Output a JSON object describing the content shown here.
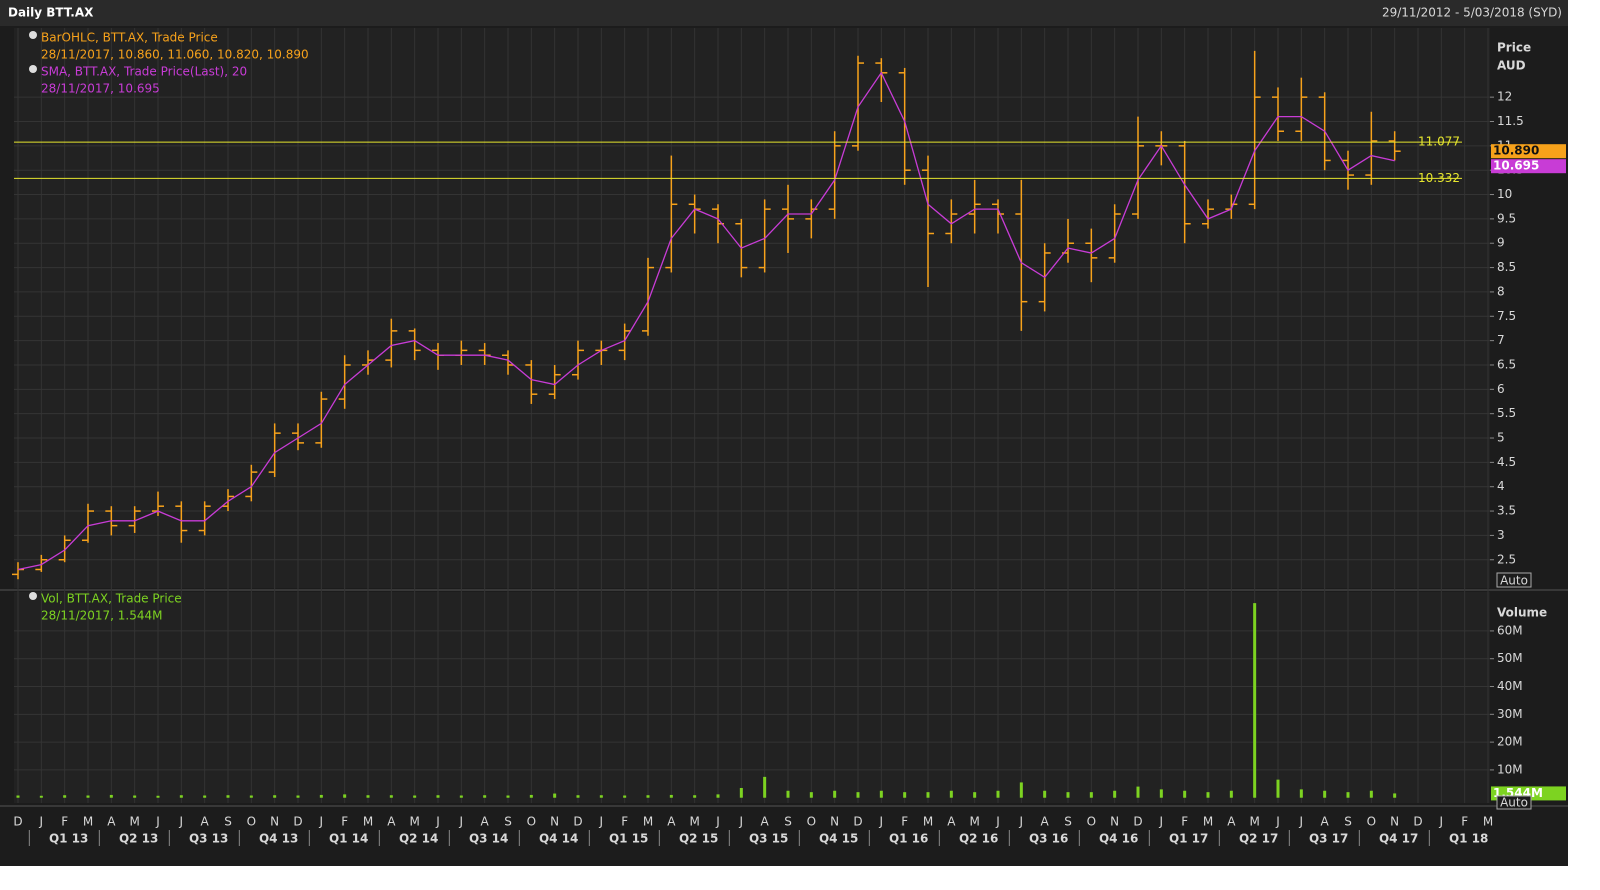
{
  "header": {
    "title": "Daily BTT.AX",
    "range": "29/11/2012 - 5/03/2018 (SYD)"
  },
  "chart_data": [
    {
      "type": "ohlc",
      "ylabel": "Price",
      "yunit": "AUD",
      "button": "Auto",
      "ylim": [
        1.92,
        13.42
      ],
      "yticks": [
        2.5,
        3,
        3.5,
        4,
        4.5,
        5,
        5.5,
        6,
        6.5,
        7,
        7.5,
        8,
        8.5,
        9,
        9.5,
        10,
        10.5,
        11,
        11.5,
        12
      ],
      "grid": true,
      "series": [
        {
          "name": "BarOHLC, BTT.AX, Trade Price",
          "color": "#f7a21b",
          "open": [
            2.2,
            2.3,
            2.5,
            2.9,
            3.5,
            3.2,
            3.5,
            3.6,
            3.1,
            3.6,
            3.8,
            4.3,
            5.1,
            4.9,
            5.8,
            6.5,
            6.6,
            7.2,
            6.8,
            6.7,
            6.8,
            6.7,
            6.5,
            5.9,
            6.3,
            6.8,
            6.8,
            7.2,
            8.5,
            9.8,
            9.7,
            9.4,
            8.5,
            9.7,
            9.5,
            9.7,
            11.0,
            12.7,
            12.5,
            10.5,
            9.2,
            9.6,
            9.8,
            9.6,
            7.8,
            8.8,
            9.0,
            8.7,
            9.6,
            11.0,
            11.0,
            9.4,
            9.7,
            9.8,
            12.0,
            11.3,
            12.0,
            10.7,
            10.4,
            11.1,
            null,
            null,
            null,
            null
          ],
          "high": [
            2.45,
            2.6,
            3.0,
            3.65,
            3.6,
            3.6,
            3.9,
            3.7,
            3.7,
            3.95,
            4.45,
            5.3,
            5.3,
            5.95,
            6.7,
            6.8,
            7.45,
            7.25,
            6.95,
            7.0,
            6.95,
            6.8,
            6.6,
            6.5,
            7.0,
            7.0,
            7.35,
            8.7,
            10.8,
            10.0,
            9.8,
            9.5,
            9.9,
            10.2,
            9.9,
            11.3,
            12.85,
            12.8,
            12.6,
            10.8,
            9.9,
            10.3,
            9.9,
            10.3,
            9.0,
            9.5,
            9.3,
            9.8,
            11.6,
            11.3,
            11.1,
            9.9,
            10.0,
            12.95,
            12.2,
            12.4,
            12.1,
            10.9,
            11.7,
            11.3,
            null,
            null,
            null,
            null
          ],
          "low": [
            2.1,
            2.25,
            2.45,
            2.85,
            3.0,
            3.05,
            3.4,
            2.85,
            3.0,
            3.5,
            3.7,
            4.2,
            4.75,
            4.8,
            5.6,
            6.3,
            6.45,
            6.6,
            6.4,
            6.5,
            6.5,
            6.3,
            5.7,
            5.8,
            6.2,
            6.5,
            6.6,
            7.1,
            8.4,
            9.2,
            9.0,
            8.3,
            8.4,
            8.8,
            9.1,
            9.5,
            10.9,
            11.9,
            10.2,
            8.1,
            9.0,
            9.2,
            9.2,
            7.2,
            7.6,
            8.6,
            8.2,
            8.6,
            9.5,
            10.6,
            9.0,
            9.3,
            9.5,
            9.7,
            11.1,
            11.1,
            10.5,
            10.1,
            10.2,
            10.7,
            null,
            null,
            null,
            null
          ],
          "close": [
            2.3,
            2.5,
            2.9,
            3.5,
            3.2,
            3.5,
            3.6,
            3.1,
            3.6,
            3.8,
            4.3,
            5.1,
            4.9,
            5.8,
            6.5,
            6.6,
            7.2,
            6.8,
            6.7,
            6.8,
            6.7,
            6.5,
            5.9,
            6.3,
            6.8,
            6.8,
            7.2,
            8.5,
            9.8,
            9.7,
            9.4,
            8.5,
            9.7,
            9.5,
            9.7,
            11.0,
            12.7,
            12.5,
            10.5,
            9.2,
            9.6,
            9.8,
            9.6,
            7.8,
            8.8,
            9.0,
            8.7,
            9.6,
            11.0,
            11.0,
            9.4,
            9.7,
            9.8,
            12.0,
            11.3,
            12.0,
            10.7,
            10.4,
            11.1,
            10.89,
            null,
            null,
            null,
            null
          ]
        },
        {
          "name": "SMA, BTT.AX, Trade Price(Last),  20",
          "color": "#c83cd6",
          "values": [
            2.3,
            2.4,
            2.7,
            3.2,
            3.3,
            3.3,
            3.5,
            3.3,
            3.3,
            3.7,
            4.0,
            4.7,
            5.0,
            5.3,
            6.1,
            6.5,
            6.9,
            7.0,
            6.7,
            6.7,
            6.7,
            6.6,
            6.2,
            6.1,
            6.5,
            6.8,
            7.0,
            7.8,
            9.1,
            9.7,
            9.5,
            8.9,
            9.1,
            9.6,
            9.6,
            10.3,
            11.8,
            12.5,
            11.5,
            9.8,
            9.4,
            9.7,
            9.7,
            8.6,
            8.3,
            8.9,
            8.8,
            9.1,
            10.3,
            11.0,
            10.2,
            9.5,
            9.7,
            10.9,
            11.6,
            11.6,
            11.3,
            10.5,
            10.8,
            10.695,
            null,
            null,
            null,
            null
          ]
        }
      ],
      "legend_details": [
        "28/11/2017, 10.860, 11.060, 10.820, 10.890",
        "28/11/2017, 10.695"
      ],
      "hlines": [
        11.077,
        10.332
      ],
      "hline_color": "#e6e62e",
      "last_labels": [
        {
          "value": 10.89,
          "label": "10.890"
        },
        10.695
      ]
    },
    {
      "type": "bar",
      "ylabel": "Volume",
      "button": "Auto",
      "ylim": [
        -1900000,
        74000000
      ],
      "yticks": [
        {
          "value": 10000000,
          "label": "10M"
        },
        {
          "value": 20000000,
          "label": "20M"
        },
        {
          "value": 30000000,
          "label": "30M"
        },
        {
          "value": 40000000,
          "label": "40M"
        },
        {
          "value": 50000000,
          "label": "50M"
        },
        {
          "value": 60000000,
          "label": "60M"
        }
      ],
      "grid": true,
      "series": [
        {
          "name": "Vol, BTT.AX, Trade Price",
          "color": "#7dd321",
          "values": [
            800000,
            700000,
            900000,
            800000,
            1000000,
            800000,
            700000,
            900000,
            800000,
            900000,
            800000,
            900000,
            800000,
            1000000,
            1200000,
            900000,
            900000,
            800000,
            900000,
            800000,
            900000,
            800000,
            1000000,
            1500000,
            900000,
            900000,
            800000,
            900000,
            1000000,
            900000,
            1200000,
            3500000,
            7500000,
            2500000,
            2000000,
            2500000,
            2000000,
            2500000,
            2000000,
            2000000,
            2500000,
            2000000,
            2500000,
            5500000,
            2500000,
            2000000,
            2000000,
            2500000,
            4000000,
            3000000,
            2500000,
            2000000,
            2500000,
            70000000,
            6500000,
            3000000,
            2500000,
            2000000,
            2500000,
            1544000,
            null,
            null,
            null,
            null
          ]
        }
      ],
      "legend_details": [
        "28/11/2017, 1.544M"
      ],
      "last_label": {
        "value": 1544000,
        "label": "1.544M"
      },
      "categories": [
        "D",
        "J",
        "F",
        "M",
        "A",
        "M",
        "J",
        "J",
        "A",
        "S",
        "O",
        "N",
        "D",
        "J",
        "F",
        "M",
        "A",
        "M",
        "J",
        "J",
        "A",
        "S",
        "O",
        "N",
        "D",
        "J",
        "F",
        "M",
        "A",
        "M",
        "J",
        "J",
        "A",
        "S",
        "O",
        "N",
        "D",
        "J",
        "F",
        "M",
        "A",
        "M",
        "J",
        "J",
        "A",
        "S",
        "O",
        "N",
        "D",
        "J",
        "F",
        "M",
        "A",
        "M",
        "J",
        "J",
        "A",
        "S",
        "O",
        "N",
        "D",
        "J",
        "F",
        "M"
      ],
      "quarters": [
        "Q1 13",
        "Q2 13",
        "Q3 13",
        "Q4 13",
        "Q1 14",
        "Q2 14",
        "Q3 14",
        "Q4 14",
        "Q1 15",
        "Q2 15",
        "Q3 15",
        "Q4 15",
        "Q1 16",
        "Q2 16",
        "Q3 16",
        "Q4 16",
        "Q1 17",
        "Q2 17",
        "Q3 17",
        "Q4 17",
        "Q1 18"
      ]
    }
  ]
}
